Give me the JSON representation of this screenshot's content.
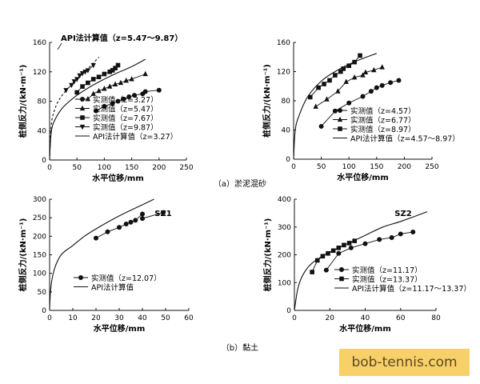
{
  "captions": {
    "a": "（a）淤泥混砂",
    "b": "（b）黏土"
  },
  "watermark": "bob-tennis.com",
  "chart_data": [
    {
      "type": "line",
      "panel": "a-left",
      "xlabel": "水平位移/mm",
      "ylabel": "桩侧反力/(kN·m⁻¹)",
      "xlim": [
        0,
        250
      ],
      "ylim": [
        0,
        160
      ],
      "xticks": [
        0,
        50,
        100,
        150,
        200,
        250
      ],
      "yticks": [
        0,
        40,
        80,
        120,
        160
      ],
      "legend_position": "bottom-right",
      "annotations": [
        {
          "text": "API法计算值（z=5.47～9.87）",
          "points_to": "dashed curve"
        }
      ],
      "series": [
        {
          "name": "实测值（z=3.27）",
          "marker": "circle",
          "x": [
            85,
            100,
            115,
            125,
            135,
            145,
            155,
            170,
            175,
            200
          ],
          "y": [
            67,
            73,
            77,
            80,
            83,
            86,
            88,
            90,
            93,
            95
          ]
        },
        {
          "name": "实测值（z=5.47）",
          "marker": "triangle",
          "x": [
            70,
            80,
            90,
            100,
            110,
            120,
            130,
            140,
            150,
            175
          ],
          "y": [
            83,
            90,
            94,
            97,
            100,
            103,
            105,
            108,
            110,
            117
          ]
        },
        {
          "name": "实测值（z=7.67）",
          "marker": "square",
          "x": [
            50,
            60,
            70,
            80,
            90,
            100,
            110,
            115,
            120,
            125
          ],
          "y": [
            92,
            100,
            105,
            110,
            113,
            117,
            120,
            122,
            125,
            129
          ]
        },
        {
          "name": "实测值（z=9.87）",
          "marker": "triangle-down",
          "x": [
            30,
            40,
            45,
            50,
            55,
            60,
            65,
            70,
            80
          ],
          "y": [
            95,
            102,
            107,
            110,
            115,
            118,
            120,
            122,
            129
          ]
        },
        {
          "name": "API法计算值（z=3.27）",
          "marker": "none",
          "style": "solid",
          "x": [
            0,
            3,
            10,
            25,
            50,
            75,
            100,
            125,
            150,
            175
          ],
          "y": [
            0,
            38,
            55,
            72,
            88,
            100,
            110,
            119,
            127,
            137
          ]
        },
        {
          "name": "",
          "marker": "none",
          "style": "dashed",
          "x": [
            0,
            3,
            10,
            20,
            40,
            60,
            75,
            90
          ],
          "y": [
            0,
            48,
            70,
            85,
            103,
            118,
            128,
            140
          ]
        }
      ]
    },
    {
      "type": "line",
      "panel": "a-right",
      "xlabel": "水平位移/mm",
      "ylabel": "桩侧反力/(kN·m⁻¹)",
      "xlim": [
        0,
        250
      ],
      "ylim": [
        0,
        160
      ],
      "xticks": [
        0,
        50,
        100,
        150,
        200,
        250
      ],
      "yticks": [
        0,
        40,
        80,
        120,
        160
      ],
      "legend_position": "bottom-right",
      "series": [
        {
          "name": "实测值（z=4.57）",
          "marker": "circle",
          "x": [
            50,
            75,
            100,
            125,
            140,
            150,
            160,
            175,
            190
          ],
          "y": [
            45,
            66,
            77,
            86,
            93,
            98,
            101,
            105,
            108
          ]
        },
        {
          "name": "实测值（z=6.77）",
          "marker": "triangle",
          "x": [
            40,
            60,
            80,
            95,
            110,
            125,
            130,
            145,
            160
          ],
          "y": [
            72,
            82,
            93,
            106,
            112,
            115,
            119,
            122,
            126
          ]
        },
        {
          "name": "实测值（z=8.97）",
          "marker": "square",
          "x": [
            30,
            45,
            55,
            65,
            75,
            85,
            90,
            100,
            110,
            120
          ],
          "y": [
            85,
            98,
            103,
            108,
            115,
            120,
            124,
            128,
            133,
            142
          ]
        },
        {
          "name": "API法计算值（z=4.57～8.97）",
          "marker": "none",
          "style": "solid",
          "x": [
            0,
            3,
            10,
            25,
            50,
            75,
            100,
            125,
            150
          ],
          "y": [
            0,
            40,
            60,
            85,
            107,
            120,
            130,
            138,
            145
          ]
        }
      ]
    },
    {
      "type": "line",
      "panel": "b-left",
      "title": "SZ1",
      "xlabel": "水平位移/mm",
      "ylabel": "桩侧反力/(kN·m⁻¹)",
      "xlim": [
        0,
        60
      ],
      "ylim": [
        0,
        300
      ],
      "xticks": [
        0,
        10,
        20,
        30,
        40,
        50,
        60
      ],
      "yticks": [
        0,
        50,
        100,
        150,
        200,
        250,
        300
      ],
      "legend_position": "bottom-right",
      "series": [
        {
          "name": "实测值（z=12.07）",
          "marker": "circle",
          "x": [
            20,
            25,
            30,
            33,
            35,
            37,
            40,
            40,
            49
          ],
          "y": [
            195,
            212,
            224,
            233,
            238,
            243,
            260,
            248,
            264
          ]
        },
        {
          "name": "API法计算值",
          "marker": "none",
          "style": "solid",
          "x": [
            0,
            0.5,
            2,
            5,
            10,
            15,
            20,
            30,
            40,
            45
          ],
          "y": [
            0,
            60,
            110,
            150,
            175,
            200,
            220,
            255,
            285,
            300
          ]
        }
      ]
    },
    {
      "type": "line",
      "panel": "b-right",
      "title": "SZ2",
      "xlabel": "水平位移/mm",
      "ylabel": "桩侧反力/(kN·m⁻¹)",
      "xlim": [
        0,
        80
      ],
      "ylim": [
        0,
        400
      ],
      "xticks": [
        0,
        20,
        40,
        60,
        80
      ],
      "yticks": [
        0,
        100,
        200,
        300,
        400
      ],
      "legend_position": "bottom-right",
      "series": [
        {
          "name": "实测值（z=11.17）",
          "marker": "circle",
          "x": [
            18,
            25,
            32,
            40,
            48,
            55,
            60,
            67
          ],
          "y": [
            145,
            205,
            225,
            240,
            255,
            262,
            275,
            282
          ]
        },
        {
          "name": "实测值（z=13.37）",
          "marker": "square",
          "x": [
            10,
            13,
            16,
            19,
            22,
            25,
            28,
            31,
            34
          ],
          "y": [
            138,
            180,
            195,
            205,
            215,
            225,
            235,
            242,
            250
          ]
        },
        {
          "name": "API法计算值（z=11.17～13.37）",
          "marker": "none",
          "style": "solid",
          "x": [
            0,
            2,
            5,
            10,
            20,
            30,
            40,
            50,
            60,
            75
          ],
          "y": [
            0,
            80,
            130,
            170,
            210,
            240,
            270,
            300,
            320,
            355
          ]
        }
      ]
    }
  ]
}
